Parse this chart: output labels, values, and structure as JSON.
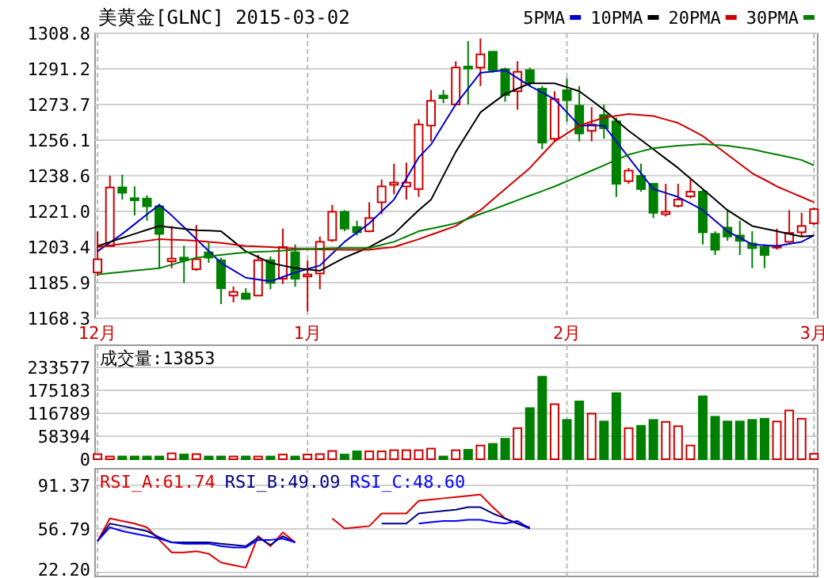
{
  "chart_data": [
    {
      "type": "candlestick",
      "title": "美黄金[GLNC] 2015-03-02",
      "categories": [
        "12月",
        null,
        null,
        null,
        null,
        null,
        null,
        null,
        null,
        null,
        null,
        null,
        null,
        null,
        null,
        null,
        null,
        "1月",
        null,
        null,
        null,
        null,
        null,
        null,
        null,
        null,
        null,
        null,
        null,
        null,
        null,
        null,
        null,
        null,
        null,
        null,
        null,
        null,
        "2月",
        null,
        null,
        null,
        null,
        null,
        null,
        null,
        null,
        null,
        null,
        null,
        null,
        null,
        null,
        null,
        null,
        null,
        null,
        null,
        "3月"
      ],
      "ohlc": [
        [
          1190.9,
          1211.2,
          1189.1,
          1197.4
        ],
        [
          1203.9,
          1238.5,
          1203.4,
          1232.8
        ],
        [
          1232.8,
          1239.1,
          1226.8,
          1230.2
        ],
        [
          1227.5,
          1233.3,
          1219.0,
          1226.5
        ],
        [
          1227.3,
          1228.9,
          1216.4,
          1223.5
        ],
        [
          1223.5,
          1224.8,
          1193.0,
          1209.9
        ],
        [
          1196.4,
          1213.8,
          1193.0,
          1197.7
        ],
        [
          1198.2,
          1204.1,
          1185.7,
          1196.9
        ],
        [
          1192.5,
          1214.3,
          1191.7,
          1197.4
        ],
        [
          1200.8,
          1205.5,
          1195.6,
          1198.2
        ],
        [
          1196.9,
          1198.2,
          1175.3,
          1183.1
        ],
        [
          1179.5,
          1184.0,
          1176.1,
          1181.3
        ],
        [
          1180.5,
          1183.1,
          1177.4,
          1177.9
        ],
        [
          1179.5,
          1199.5,
          1179.2,
          1196.9
        ],
        [
          1196.9,
          1198.8,
          1182.6,
          1185.7
        ],
        [
          1187.8,
          1212.5,
          1185.2,
          1203.4
        ],
        [
          1200.8,
          1204.7,
          1183.9,
          1187.8
        ],
        [
          1188.9,
          1196.9,
          1171.7,
          1189.9
        ],
        [
          1190.4,
          1208.6,
          1182.6,
          1206.0
        ],
        [
          1206.8,
          1224.2,
          1206.0,
          1220.8
        ],
        [
          1220.8,
          1221.6,
          1211.2,
          1212.5
        ],
        [
          1213.3,
          1216.4,
          1209.1,
          1210.7
        ],
        [
          1211.2,
          1225.5,
          1210.7,
          1217.7
        ],
        [
          1225.5,
          1236.7,
          1219.6,
          1233.3
        ],
        [
          1234.1,
          1244.5,
          1229.4,
          1235.2
        ],
        [
          1233.3,
          1245.0,
          1226.8,
          1235.2
        ],
        [
          1232.0,
          1266.4,
          1228.1,
          1263.8
        ],
        [
          1263.3,
          1280.9,
          1255.5,
          1275.5
        ],
        [
          1278.1,
          1280.9,
          1274.4,
          1276.8
        ],
        [
          1273.7,
          1295.0,
          1273.7,
          1291.9
        ],
        [
          1292.4,
          1304.9,
          1273.7,
          1291.4
        ],
        [
          1291.9,
          1306.2,
          1282.8,
          1298.4
        ],
        [
          1299.7,
          1299.7,
          1289.3,
          1290.6
        ],
        [
          1291.1,
          1291.9,
          1275.0,
          1278.3
        ],
        [
          1280.2,
          1295.0,
          1271.1,
          1289.8
        ],
        [
          1290.6,
          1291.9,
          1282.8,
          1284.6
        ],
        [
          1281.5,
          1282.8,
          1251.6,
          1254.9
        ],
        [
          1256.8,
          1280.2,
          1255.5,
          1276.3
        ],
        [
          1280.7,
          1286.7,
          1265.3,
          1275.8
        ],
        [
          1273.1,
          1282.8,
          1255.5,
          1259.4
        ],
        [
          1260.7,
          1272.4,
          1255.5,
          1263.8
        ],
        [
          1268.5,
          1273.7,
          1256.8,
          1262.0
        ],
        [
          1265.4,
          1267.2,
          1228.1,
          1234.6
        ],
        [
          1235.9,
          1242.4,
          1234.6,
          1241.1
        ],
        [
          1238.5,
          1244.5,
          1230.7,
          1232.0
        ],
        [
          1234.6,
          1234.6,
          1217.7,
          1220.3
        ],
        [
          1219.6,
          1234.6,
          1218.5,
          1220.8
        ],
        [
          1223.7,
          1234.6,
          1222.9,
          1226.8
        ],
        [
          1228.4,
          1236.7,
          1227.4,
          1230.7
        ],
        [
          1230.7,
          1231.5,
          1204.7,
          1210.7
        ],
        [
          1209.9,
          1211.2,
          1199.5,
          1202.1
        ],
        [
          1213.0,
          1221.6,
          1206.5,
          1208.6
        ],
        [
          1209.1,
          1216.4,
          1199.5,
          1206.5
        ],
        [
          1205.2,
          1211.2,
          1193.0,
          1202.9
        ],
        [
          1203.4,
          1204.7,
          1193.0,
          1199.5
        ],
        [
          1203.4,
          1212.5,
          1202.1,
          1203.9
        ],
        [
          1206.0,
          1221.6,
          1205.5,
          1210.4
        ],
        [
          1210.7,
          1220.3,
          1208.6,
          1213.8
        ],
        [
          1215.1,
          1222.9,
          1214.3,
          1222.1
        ]
      ],
      "colors": [
        "#cc0000",
        "#cc0000",
        "#008000",
        "#008000",
        "#008000",
        "#008000",
        "#cc0000",
        "#008000",
        "#cc0000",
        "#008000",
        "#008000",
        "#cc0000",
        "#008000",
        "#cc0000",
        "#008000",
        "#cc0000",
        "#008000",
        "#cc0000",
        "#cc0000",
        "#cc0000",
        "#008000",
        "#008000",
        "#cc0000",
        "#cc0000",
        "#cc0000",
        "#cc0000",
        "#cc0000",
        "#cc0000",
        "#008000",
        "#cc0000",
        "#008000",
        "#cc0000",
        "#008000",
        "#008000",
        "#cc0000",
        "#008000",
        "#008000",
        "#cc0000",
        "#008000",
        "#008000",
        "#cc0000",
        "#008000",
        "#008000",
        "#cc0000",
        "#008000",
        "#008000",
        "#cc0000",
        "#cc0000",
        "#cc0000",
        "#008000",
        "#008000",
        "#008000",
        "#008000",
        "#008000",
        "#008000",
        "#cc0000",
        "#cc0000",
        "#cc0000",
        "#cc0000"
      ],
      "series": [
        {
          "name": "5PMA",
          "type": "line",
          "color": "#0000cc",
          "values": [
            1201.3,
            1205.6,
            1209.9,
            1214.7,
            1219.5,
            1224.2,
            1219.0,
            1213.2,
            1207.3,
            1201.5,
            1195.6,
            1192.0,
            1188.3,
            1187.4,
            1186.5,
            1188.7,
            1190.9,
            1192.6,
            1194.3,
            1200.2,
            1206.0,
            1210.6,
            1215.1,
            1221.0,
            1226.8,
            1237.2,
            1247.6,
            1254.0,
            1263.9,
            1273.7,
            1281.5,
            1289.3,
            1290.0,
            1290.6,
            1286.7,
            1282.8,
            1279.6,
            1276.3,
            1269.8,
            1263.3,
            1263.3,
            1263.3,
            1255.5,
            1247.6,
            1239.8,
            1232.0,
            1230.1,
            1228.1,
            1224.9,
            1221.6,
            1216.4,
            1211.2,
            1208.0,
            1204.7,
            1204.3,
            1203.9,
            1205.0,
            1206.0,
            1209.1
          ]
        },
        {
          "name": "10PMA",
          "type": "line",
          "color": "#000000",
          "values": [
            1203.9,
            1205.9,
            1207.9,
            1209.9,
            1211.9,
            1213.8,
            1213.1,
            1212.4,
            1211.7,
            1211.5,
            1211.2,
            1206.3,
            1201.3,
            1198.5,
            1195.6,
            1194.3,
            1193.0,
            1192.4,
            1191.7,
            1195.0,
            1198.2,
            1200.8,
            1203.4,
            1206.7,
            1209.9,
            1215.8,
            1221.6,
            1226.8,
            1238.6,
            1250.3,
            1260.1,
            1269.8,
            1274.4,
            1278.9,
            1281.5,
            1284.1,
            1284.1,
            1284.1,
            1282.2,
            1280.2,
            1275.7,
            1271.1,
            1265.9,
            1260.7,
            1256.2,
            1251.6,
            1247.0,
            1242.4,
            1237.2,
            1232.0,
            1226.8,
            1221.6,
            1217.7,
            1213.8,
            1212.5,
            1211.2,
            1209.9,
            1208.6,
            1209.1
          ]
        },
        {
          "name": "20PMA",
          "type": "line",
          "color": "#cc0000",
          "values": [
            1203.4,
            1204.2,
            1205.0,
            1205.7,
            1206.5,
            1207.3,
            1207.0,
            1206.8,
            1206.5,
            1206.0,
            1205.5,
            1204.7,
            1203.9,
            1203.7,
            1203.4,
            1203.0,
            1202.6,
            1202.5,
            1202.3,
            1202.2,
            1202.1,
            1202.1,
            1202.1,
            1202.8,
            1203.4,
            1205.4,
            1207.3,
            1209.5,
            1211.6,
            1213.8,
            1217.7,
            1221.6,
            1226.8,
            1232.0,
            1237.2,
            1242.4,
            1249.0,
            1255.5,
            1259.4,
            1263.3,
            1265.3,
            1267.2,
            1268.1,
            1269.0,
            1268.5,
            1268.0,
            1266.3,
            1264.6,
            1261.4,
            1258.1,
            1253.6,
            1249.0,
            1244.4,
            1239.8,
            1236.6,
            1233.3,
            1230.7,
            1228.1,
            1225.5
          ]
        },
        {
          "name": "30PMA",
          "type": "line",
          "color": "#008000",
          "values": [
            1189.9,
            1190.5,
            1191.1,
            1191.8,
            1192.4,
            1193.0,
            1194.7,
            1196.5,
            1198.2,
            1198.9,
            1199.5,
            1200.2,
            1200.8,
            1201.1,
            1201.3,
            1201.7,
            1202.1,
            1202.4,
            1202.6,
            1202.8,
            1202.9,
            1202.9,
            1202.9,
            1204.5,
            1206.0,
            1208.6,
            1211.2,
            1212.5,
            1213.8,
            1215.1,
            1217.4,
            1219.7,
            1221.9,
            1224.2,
            1226.5,
            1228.8,
            1231.0,
            1233.3,
            1235.9,
            1238.5,
            1241.1,
            1243.7,
            1246.4,
            1249.0,
            1250.6,
            1252.1,
            1252.8,
            1253.4,
            1253.8,
            1254.2,
            1253.8,
            1253.4,
            1252.5,
            1251.6,
            1250.3,
            1249.0,
            1247.7,
            1246.3,
            1243.7
          ]
        }
      ],
      "ylim": [
        1168.3,
        1308.8
      ],
      "yticks": [
        1168.3,
        1185.9,
        1203.4,
        {
          "value": 1221.0,
          "label": "1221.0"
        },
        1238.6,
        1256.1,
        1273.7,
        1291.2,
        1308.8
      ],
      "grid": true,
      "legend": "top right"
    },
    {
      "type": "bar",
      "title": "成交量:13853",
      "categories": [
        null,
        null,
        null,
        null,
        null,
        null,
        null,
        null,
        null,
        null,
        null,
        null,
        null,
        null,
        null,
        null,
        null,
        null,
        null,
        null,
        null,
        null,
        null,
        null,
        null,
        null,
        null,
        null,
        null,
        null,
        null,
        null,
        null,
        null,
        null,
        null,
        null,
        null,
        null,
        null,
        null,
        null,
        null,
        null,
        null,
        null,
        null,
        null,
        null,
        null,
        null,
        null,
        null,
        null,
        null,
        null,
        null,
        null,
        null
      ],
      "values": [
        13000,
        7000,
        7000,
        7000,
        7000,
        7000,
        15000,
        12000,
        13000,
        7000,
        7000,
        7000,
        7000,
        7000,
        7000,
        12000,
        7000,
        12000,
        13000,
        21000,
        12000,
        20000,
        20000,
        20000,
        23000,
        23000,
        23000,
        27000,
        7000,
        23000,
        24000,
        35000,
        39000,
        52000,
        79000,
        130000,
        210000,
        140000,
        100000,
        147000,
        116000,
        96000,
        168000,
        79000,
        85000,
        100000,
        95000,
        84000,
        35000,
        160000,
        108000,
        96000,
        96000,
        100000,
        103000,
        96000,
        124000,
        103000,
        13853
      ],
      "colors": [
        "#cc0000",
        "#cc0000",
        "#008000",
        "#008000",
        "#008000",
        "#008000",
        "#cc0000",
        "#008000",
        "#cc0000",
        "#008000",
        "#008000",
        "#cc0000",
        "#008000",
        "#cc0000",
        "#008000",
        "#cc0000",
        "#008000",
        "#cc0000",
        "#cc0000",
        "#cc0000",
        "#008000",
        "#008000",
        "#cc0000",
        "#cc0000",
        "#cc0000",
        "#cc0000",
        "#cc0000",
        "#cc0000",
        "#008000",
        "#cc0000",
        "#008000",
        "#cc0000",
        "#008000",
        "#008000",
        "#cc0000",
        "#008000",
        "#008000",
        "#cc0000",
        "#008000",
        "#008000",
        "#cc0000",
        "#008000",
        "#008000",
        "#cc0000",
        "#008000",
        "#008000",
        "#cc0000",
        "#cc0000",
        "#cc0000",
        "#008000",
        "#008000",
        "#008000",
        "#008000",
        "#008000",
        "#008000",
        "#cc0000",
        "#cc0000",
        "#cc0000",
        "#cc0000"
      ],
      "ylim": [
        0,
        290000
      ],
      "yticks": [
        0,
        58394,
        116789,
        175183,
        233577
      ],
      "grid": true
    },
    {
      "type": "line",
      "categories": [
        null,
        null,
        null,
        null,
        null,
        null,
        null,
        null,
        null,
        null,
        null,
        null,
        null,
        null,
        null,
        null,
        null,
        null,
        null,
        null,
        null,
        null,
        null,
        null,
        null,
        null,
        null,
        null,
        null,
        null,
        null,
        null,
        null,
        null,
        null,
        null,
        null,
        null,
        null,
        null,
        null,
        null,
        null,
        null,
        null,
        null,
        null,
        null,
        null,
        null,
        null,
        null,
        null,
        null,
        null,
        null,
        null,
        null,
        null
      ],
      "series": [
        {
          "name": "RSI_A:61.74",
          "color": "#dd0000",
          "values": [
            47,
            65,
            63,
            61,
            58,
            48,
            38,
            38,
            39,
            37,
            30,
            28,
            26,
            51,
            43,
            54,
            46,
            null,
            null,
            65,
            57,
            58,
            59,
            69,
            69,
            69,
            79,
            80,
            81,
            82,
            83,
            84,
            74,
            65,
            61,
            58,
            null,
            null,
            null,
            null,
            null,
            null,
            null,
            null,
            null,
            null,
            null,
            null,
            null,
            null,
            null,
            null,
            null,
            null,
            null,
            null,
            null,
            null,
            null
          ]
        },
        {
          "name": "RSI_B:49.09",
          "color": "#000080",
          "values": [
            47,
            61,
            59,
            57,
            55,
            50,
            46,
            46,
            46,
            46,
            45,
            44,
            43,
            50,
            44,
            51,
            46,
            null,
            null,
            null,
            null,
            null,
            null,
            61,
            61,
            61,
            69,
            70,
            71,
            72,
            74,
            74,
            69,
            65,
            61,
            57,
            null,
            null,
            null,
            null,
            null,
            null,
            null,
            null,
            null,
            null,
            null,
            null,
            null,
            null,
            null,
            null,
            null,
            null,
            null,
            null,
            null,
            null,
            null
          ]
        },
        {
          "name": "RSI_C:48.60",
          "color": "#0000ff",
          "values": [
            47,
            58,
            55,
            53,
            51,
            49,
            46,
            45,
            45,
            45,
            43,
            42,
            42,
            48,
            48,
            49,
            46,
            null,
            null,
            null,
            null,
            null,
            null,
            null,
            null,
            null,
            61,
            62,
            63,
            63,
            64,
            64,
            62,
            61,
            63,
            57,
            null,
            null,
            null,
            null,
            null,
            null,
            null,
            null,
            null,
            null,
            null,
            null,
            null,
            null,
            null,
            null,
            null,
            null,
            null,
            null,
            null,
            null,
            null
          ]
        }
      ],
      "ylim": [
        19,
        104.5
      ],
      "yticks": [
        {
          "value": 22.2,
          "label": "22.20"
        },
        56.79,
        91.37
      ],
      "grid": true,
      "legend": "top left"
    }
  ]
}
